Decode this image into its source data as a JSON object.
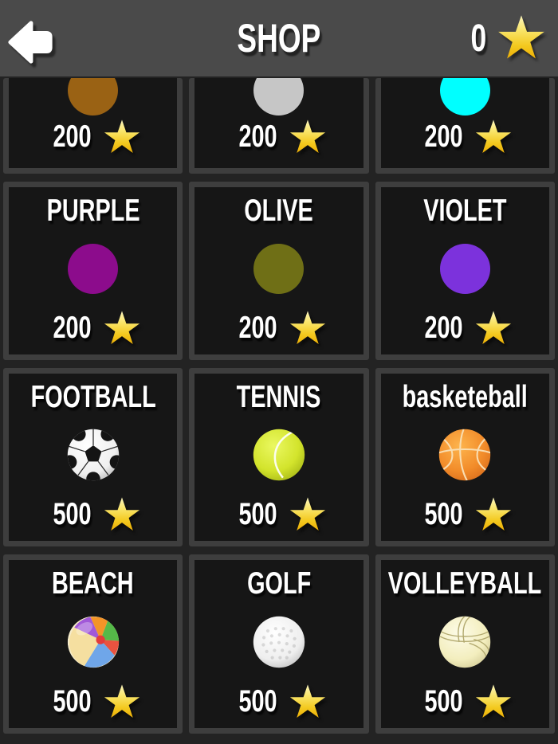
{
  "header": {
    "title": "SHOP",
    "coin_balance": "0"
  },
  "palette": {
    "header_bg": "#4A4A4A",
    "page_bg": "#232323",
    "card_bg": "#161616",
    "card_border": "#3E3E3E",
    "text": "#FFFFFF",
    "star_gold_top": "#FCF6C0",
    "star_gold_bottom": "#EDAF06"
  },
  "shop_items": [
    {
      "id": "brown",
      "label": "",
      "kind": "circle",
      "color": "#9A6214",
      "price": "200",
      "clipped": true
    },
    {
      "id": "silver",
      "label": "",
      "kind": "circle",
      "color": "#C6C6C6",
      "price": "200",
      "clipped": true
    },
    {
      "id": "cyan",
      "label": "",
      "kind": "circle",
      "color": "#00FFFF",
      "price": "200",
      "clipped": true
    },
    {
      "id": "purple",
      "label": "PURPLE",
      "kind": "circle",
      "color": "#8C0C8C",
      "price": "200"
    },
    {
      "id": "olive",
      "label": "OLIVE",
      "kind": "circle",
      "color": "#6F6F16",
      "price": "200"
    },
    {
      "id": "violet",
      "label": "VIOLET",
      "kind": "circle",
      "color": "#7C32DC",
      "price": "200"
    },
    {
      "id": "football",
      "label": "FOOTBALL",
      "kind": "ball",
      "price": "500"
    },
    {
      "id": "tennis",
      "label": "TENNIS",
      "kind": "ball",
      "price": "500"
    },
    {
      "id": "basketball",
      "label": "basketeball",
      "kind": "ball",
      "price": "500"
    },
    {
      "id": "beach",
      "label": "BEACH",
      "kind": "ball",
      "price": "500"
    },
    {
      "id": "golf",
      "label": "GOLF",
      "kind": "ball",
      "price": "500"
    },
    {
      "id": "volleyball",
      "label": "VOLLEYBALL",
      "kind": "ball",
      "price": "500"
    }
  ]
}
